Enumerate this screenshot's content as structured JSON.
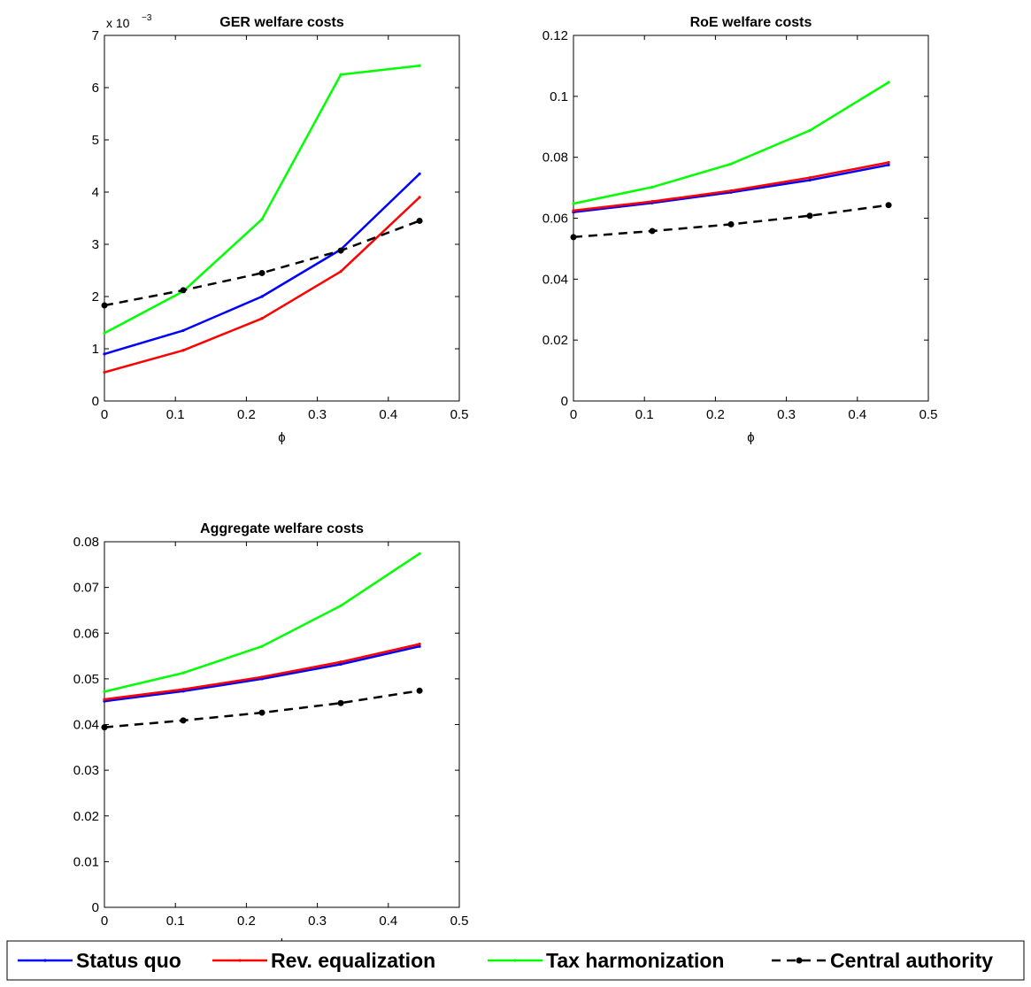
{
  "colors": {
    "status_quo": "#0000ff",
    "rev_equalization": "#ff0000",
    "tax_harmonization": "#00ff00",
    "central_authority": "#000000"
  },
  "legend": {
    "placement": "bottom",
    "entries": [
      {
        "key": "status_quo",
        "label": "Status quo",
        "style": "solid"
      },
      {
        "key": "rev_equalization",
        "label": "Rev. equalization",
        "style": "solid"
      },
      {
        "key": "tax_harmonization",
        "label": "Tax harmonization",
        "style": "solid"
      },
      {
        "key": "central_authority",
        "label": "Central authority",
        "style": "dashed"
      }
    ]
  },
  "chart_data": [
    {
      "type": "line",
      "title": "GER welfare costs",
      "xlabel": "ϕ",
      "ylabel": "",
      "exponent_label": "x 10",
      "exponent": "−3",
      "xlim": [
        0,
        0.5
      ],
      "ylim": [
        0,
        7
      ],
      "xticks": [
        "0",
        "0.1",
        "0.2",
        "0.3",
        "0.4",
        "0.5"
      ],
      "yticks": [
        "0",
        "1",
        "2",
        "3",
        "4",
        "5",
        "6",
        "7"
      ],
      "grid": false,
      "x": [
        0,
        0.111,
        0.222,
        0.333,
        0.444
      ],
      "series": [
        {
          "key": "status_quo",
          "name": "Status quo",
          "values": [
            0.9,
            1.35,
            2.0,
            2.9,
            4.35
          ]
        },
        {
          "key": "rev_equalization",
          "name": "Rev. equalization",
          "values": [
            0.55,
            0.97,
            1.58,
            2.48,
            3.9
          ]
        },
        {
          "key": "tax_harmonization",
          "name": "Tax harmonization",
          "values": [
            1.3,
            2.1,
            3.48,
            6.25,
            6.42
          ]
        },
        {
          "key": "central_authority",
          "name": "Central authority",
          "values": [
            1.83,
            2.12,
            2.45,
            2.88,
            3.45
          ]
        }
      ]
    },
    {
      "type": "line",
      "title": "RoE welfare costs",
      "xlabel": "ϕ",
      "ylabel": "",
      "xlim": [
        0,
        0.5
      ],
      "ylim": [
        0,
        0.12
      ],
      "xticks": [
        "0",
        "0.1",
        "0.2",
        "0.3",
        "0.4",
        "0.5"
      ],
      "yticks": [
        "0",
        "0.02",
        "0.04",
        "0.06",
        "0.08",
        "0.1",
        "0.12"
      ],
      "grid": false,
      "x": [
        0,
        0.111,
        0.222,
        0.333,
        0.444
      ],
      "series": [
        {
          "key": "status_quo",
          "name": "Status quo",
          "values": [
            0.062,
            0.065,
            0.0685,
            0.0725,
            0.0775
          ]
        },
        {
          "key": "rev_equalization",
          "name": "Rev. equalization",
          "values": [
            0.0625,
            0.0655,
            0.069,
            0.0733,
            0.0783
          ]
        },
        {
          "key": "tax_harmonization",
          "name": "Tax harmonization",
          "values": [
            0.0648,
            0.0702,
            0.0778,
            0.0888,
            0.1046
          ]
        },
        {
          "key": "central_authority",
          "name": "Central authority",
          "values": [
            0.0538,
            0.0558,
            0.058,
            0.0608,
            0.0643
          ]
        }
      ]
    },
    {
      "type": "line",
      "title": "Aggregate welfare costs",
      "xlabel": "ϕ",
      "ylabel": "",
      "xlim": [
        0,
        0.5
      ],
      "ylim": [
        0,
        0.08
      ],
      "xticks": [
        "0",
        "0.1",
        "0.2",
        "0.3",
        "0.4",
        "0.5"
      ],
      "yticks": [
        "0",
        "0.01",
        "0.02",
        "0.03",
        "0.04",
        "0.05",
        "0.06",
        "0.07",
        "0.08"
      ],
      "grid": false,
      "x": [
        0,
        0.111,
        0.222,
        0.333,
        0.444
      ],
      "series": [
        {
          "key": "status_quo",
          "name": "Status quo",
          "values": [
            0.0451,
            0.0473,
            0.05,
            0.0532,
            0.0571
          ]
        },
        {
          "key": "rev_equalization",
          "name": "Rev. equalization",
          "values": [
            0.0455,
            0.0477,
            0.0504,
            0.0537,
            0.0576
          ]
        },
        {
          "key": "tax_harmonization",
          "name": "Tax harmonization",
          "values": [
            0.0472,
            0.0513,
            0.0571,
            0.066,
            0.0774
          ]
        },
        {
          "key": "central_authority",
          "name": "Central authority",
          "values": [
            0.0394,
            0.0409,
            0.0426,
            0.0447,
            0.0474
          ]
        }
      ]
    }
  ]
}
